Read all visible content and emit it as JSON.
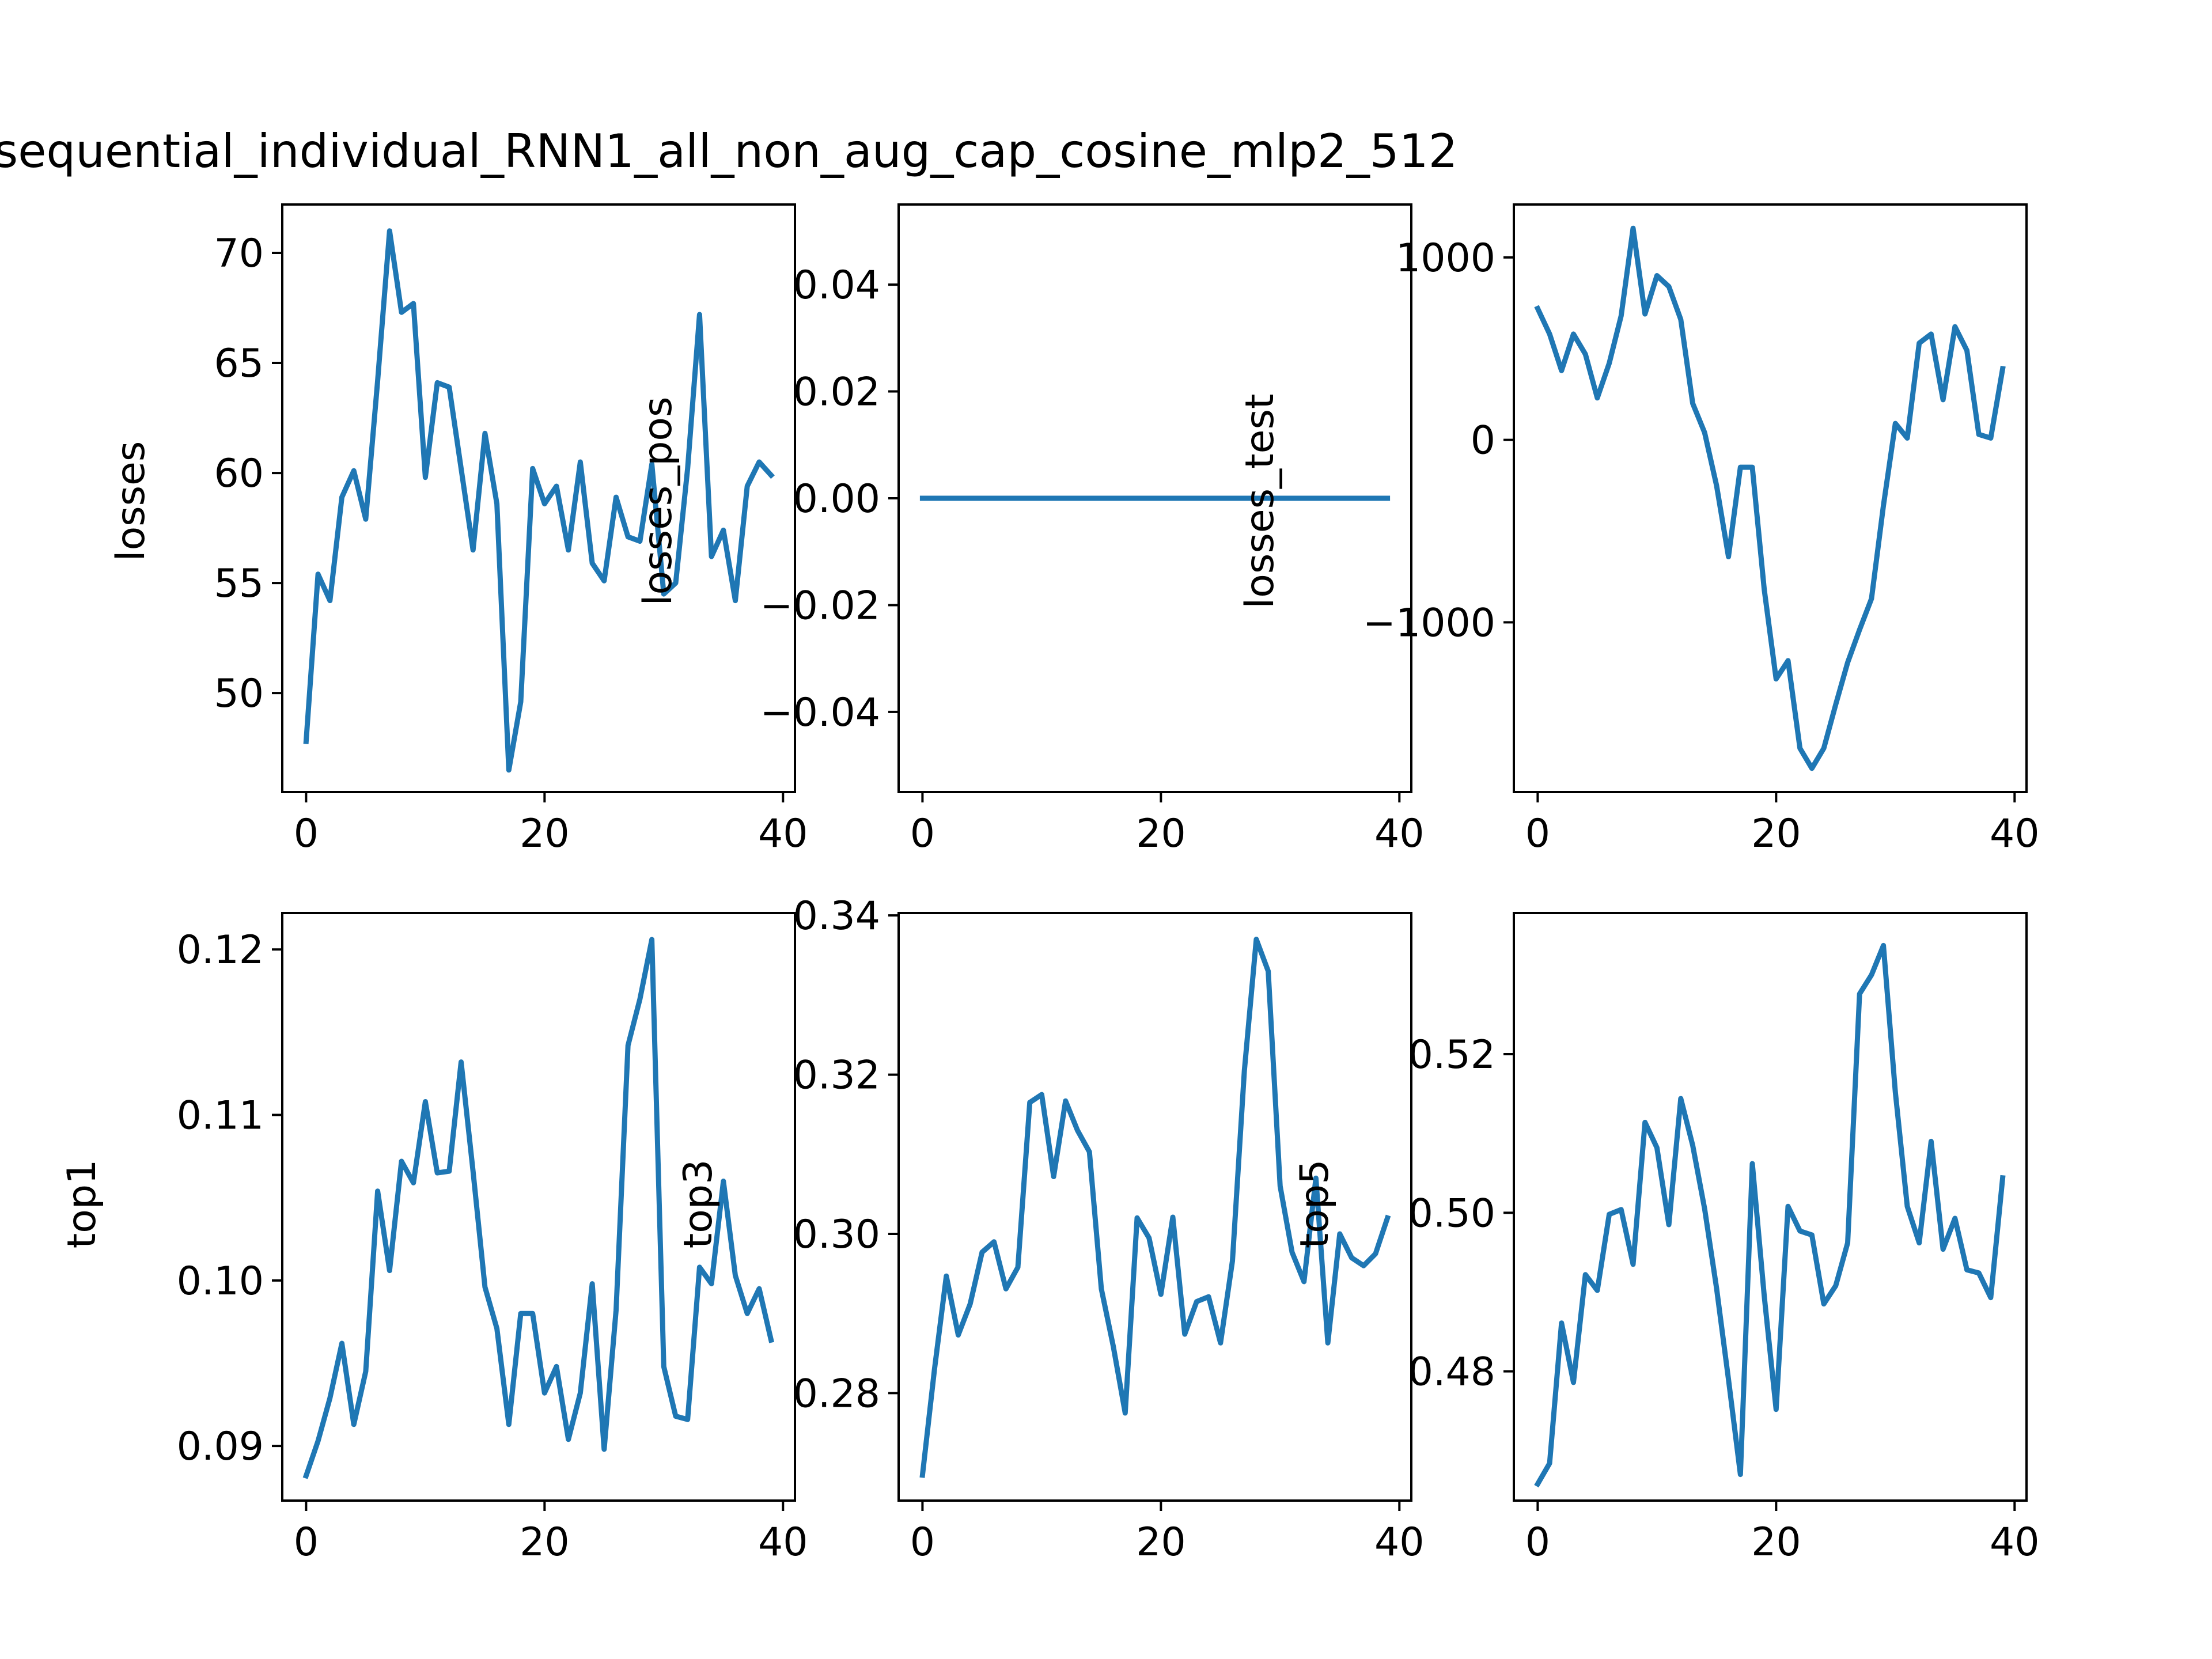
{
  "figure": {
    "title": "sequential_individual_RNN1_all_non_aug_cap_cosine_mlp2_512"
  },
  "colors": {
    "line": "#1f77b4",
    "axes": "#000000",
    "background": "#ffffff"
  },
  "chart_data": [
    {
      "type": "line",
      "ylabel": "losses",
      "xlim": [
        -2,
        41
      ],
      "ylim": [
        45.5,
        72.2
      ],
      "xticks": [
        0,
        20,
        40
      ],
      "yticks": [
        50,
        55,
        60,
        65,
        70
      ],
      "ytick_labels": [
        "50",
        "55",
        "60",
        "65",
        "70"
      ],
      "values": [
        47.8,
        55.4,
        54.2,
        58.9,
        60.1,
        57.9,
        64.2,
        71.0,
        67.3,
        67.7,
        59.8,
        64.1,
        63.9,
        60.2,
        56.5,
        61.8,
        58.6,
        46.5,
        49.6,
        60.2,
        58.6,
        59.4,
        56.5,
        60.5,
        55.9,
        55.1,
        58.9,
        57.1,
        56.9,
        60.4,
        54.5,
        55.0,
        60.2,
        67.2,
        56.2,
        57.4,
        54.2,
        59.4,
        60.5,
        59.9
      ]
    },
    {
      "type": "line",
      "ylabel": "losses_pos",
      "xlim": [
        -2,
        41
      ],
      "ylim": [
        -0.055,
        0.055
      ],
      "xticks": [
        0,
        20,
        40
      ],
      "yticks": [
        -0.04,
        -0.02,
        0.0,
        0.02,
        0.04
      ],
      "ytick_labels": [
        "−0.04",
        "−0.02",
        "0.00",
        "0.02",
        "0.04"
      ],
      "values": [
        0,
        0,
        0,
        0,
        0,
        0,
        0,
        0,
        0,
        0,
        0,
        0,
        0,
        0,
        0,
        0,
        0,
        0,
        0,
        0,
        0,
        0,
        0,
        0,
        0,
        0,
        0,
        0,
        0,
        0,
        0,
        0,
        0,
        0,
        0,
        0,
        0,
        0,
        0,
        0
      ]
    },
    {
      "type": "line",
      "ylabel": "losses_test",
      "xlim": [
        -2,
        41
      ],
      "ylim": [
        -1930,
        1290
      ],
      "xticks": [
        0,
        20,
        40
      ],
      "yticks": [
        -1000,
        0,
        1000
      ],
      "ytick_labels": [
        "−1000",
        "0",
        "1000"
      ],
      "values": [
        720,
        580,
        380,
        580,
        470,
        230,
        420,
        680,
        1160,
        690,
        900,
        840,
        660,
        200,
        40,
        -250,
        -640,
        -150,
        -150,
        -820,
        -1310,
        -1210,
        -1690,
        -1800,
        -1690,
        -1450,
        -1220,
        -1040,
        -870,
        -360,
        90,
        10,
        530,
        580,
        220,
        620,
        490,
        30,
        10,
        390
      ]
    },
    {
      "type": "line",
      "ylabel": "top1",
      "xlim": [
        -2,
        41
      ],
      "ylim": [
        0.0867,
        0.1222
      ],
      "xticks": [
        0,
        20,
        40
      ],
      "yticks": [
        0.09,
        0.1,
        0.11,
        0.12
      ],
      "ytick_labels": [
        "0.09",
        "0.10",
        "0.11",
        "0.12"
      ],
      "values": [
        0.0882,
        0.0903,
        0.0929,
        0.0962,
        0.0913,
        0.0945,
        0.1054,
        0.1006,
        0.1072,
        0.1059,
        0.1108,
        0.1065,
        0.1066,
        0.1132,
        0.1066,
        0.0996,
        0.0971,
        0.0913,
        0.098,
        0.098,
        0.0932,
        0.0948,
        0.0904,
        0.0932,
        0.0998,
        0.0898,
        0.0982,
        0.1142,
        0.117,
        0.1206,
        0.0948,
        0.0918,
        0.0916,
        0.1008,
        0.0998,
        0.106,
        0.1003,
        0.098,
        0.0995,
        0.0964
      ]
    },
    {
      "type": "line",
      "ylabel": "top3",
      "xlim": [
        -2,
        41
      ],
      "ylim": [
        0.2665,
        0.3403
      ],
      "xticks": [
        0,
        20,
        40
      ],
      "yticks": [
        0.28,
        0.3,
        0.32,
        0.34
      ],
      "ytick_labels": [
        "0.28",
        "0.30",
        "0.32",
        "0.34"
      ],
      "values": [
        0.2697,
        0.2829,
        0.2947,
        0.2873,
        0.2912,
        0.2977,
        0.299,
        0.2931,
        0.2958,
        0.3165,
        0.3175,
        0.3072,
        0.3167,
        0.313,
        0.3103,
        0.2931,
        0.2859,
        0.2775,
        0.302,
        0.2995,
        0.2924,
        0.3021,
        0.2874,
        0.2915,
        0.2921,
        0.2863,
        0.2966,
        0.3205,
        0.337,
        0.333,
        0.306,
        0.2977,
        0.294,
        0.307,
        0.2863,
        0.3,
        0.297,
        0.296,
        0.2975,
        0.302
      ]
    },
    {
      "type": "line",
      "ylabel": "top5",
      "xlim": [
        -2,
        41
      ],
      "ylim": [
        0.4637,
        0.5378
      ],
      "xticks": [
        0,
        20,
        40
      ],
      "yticks": [
        0.48,
        0.5,
        0.52
      ],
      "ytick_labels": [
        "0.48",
        "0.50",
        "0.52"
      ],
      "values": [
        0.4658,
        0.4684,
        0.4861,
        0.4786,
        0.4922,
        0.4902,
        0.4998,
        0.5004,
        0.4935,
        0.5114,
        0.5082,
        0.4985,
        0.5144,
        0.5085,
        0.5005,
        0.4905,
        0.479,
        0.467,
        0.5062,
        0.4895,
        0.4752,
        0.5008,
        0.4977,
        0.4972,
        0.4885,
        0.4908,
        0.4962,
        0.5276,
        0.53,
        0.5337,
        0.5152,
        0.5008,
        0.4962,
        0.509,
        0.4954,
        0.4993,
        0.4928,
        0.4924,
        0.4893,
        0.5044
      ]
    }
  ]
}
